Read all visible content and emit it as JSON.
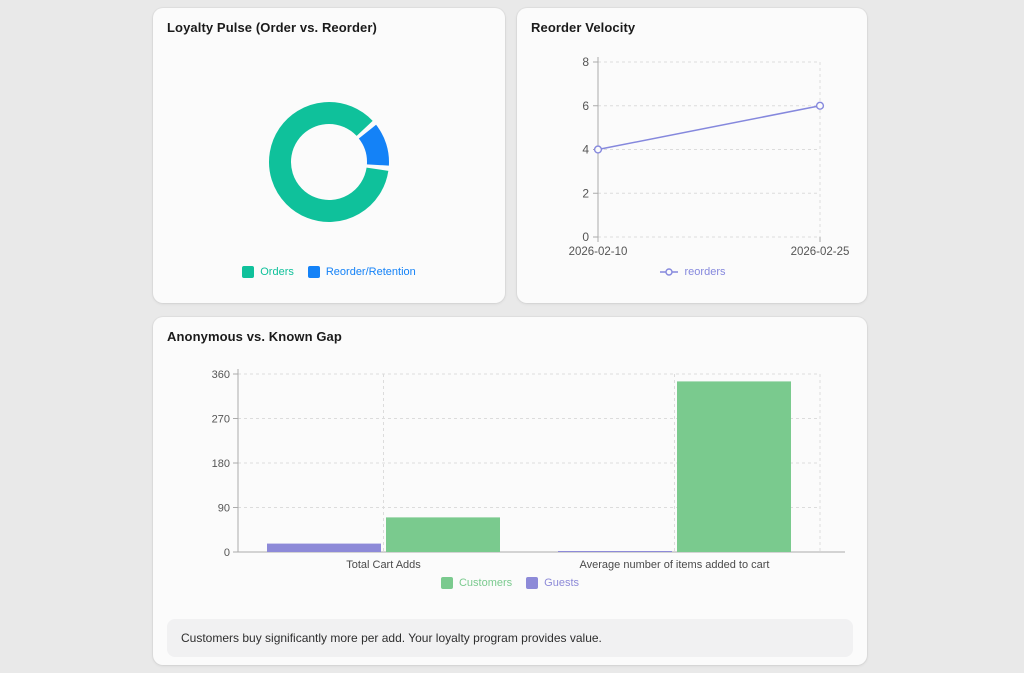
{
  "chart_data": [
    {
      "type": "pie",
      "donut": true,
      "title": "Loyalty Pulse (Order vs. Reorder)",
      "labels": [
        "Orders",
        "Reorder/Retention"
      ],
      "values": [
        87,
        13
      ],
      "values_note": "estimated percent shares read from arc angles",
      "colors": [
        "#0fc19b",
        "#1482f7"
      ],
      "rotation_deg": 96,
      "gap_deg": 5,
      "legend_position": "bottom"
    },
    {
      "type": "line",
      "title": "Reorder Velocity",
      "x": [
        "2026-02-10",
        "2026-02-25"
      ],
      "series": [
        {
          "name": "reorders",
          "values": [
            4,
            6
          ],
          "color": "#8588dd"
        }
      ],
      "ylim": [
        0,
        8
      ],
      "yticks": [
        0,
        2,
        4,
        6,
        8
      ],
      "grid": true,
      "legend_position": "bottom"
    },
    {
      "type": "bar",
      "title": "Anonymous vs. Known Gap",
      "categories": [
        "Total Cart Adds",
        "Average number of items added to cart"
      ],
      "series": [
        {
          "name": "Customers",
          "values": [
            70,
            345
          ],
          "color": "#7aca8e"
        },
        {
          "name": "Guests",
          "values": [
            17,
            2
          ],
          "color": "#8d8ad8"
        }
      ],
      "draw_order": [
        1,
        0
      ],
      "ylim": [
        0,
        360
      ],
      "yticks": [
        0,
        90,
        180,
        270,
        360
      ],
      "grid": true,
      "legend_position": "bottom",
      "annotation": "Customers buy significantly more per add. Your loyalty program provides value."
    }
  ],
  "style": {
    "grid_color": "#dcdcdc",
    "axis_color": "#ababab",
    "tick_text_color": "#555555",
    "category_text_color": "#4a4a4a"
  }
}
